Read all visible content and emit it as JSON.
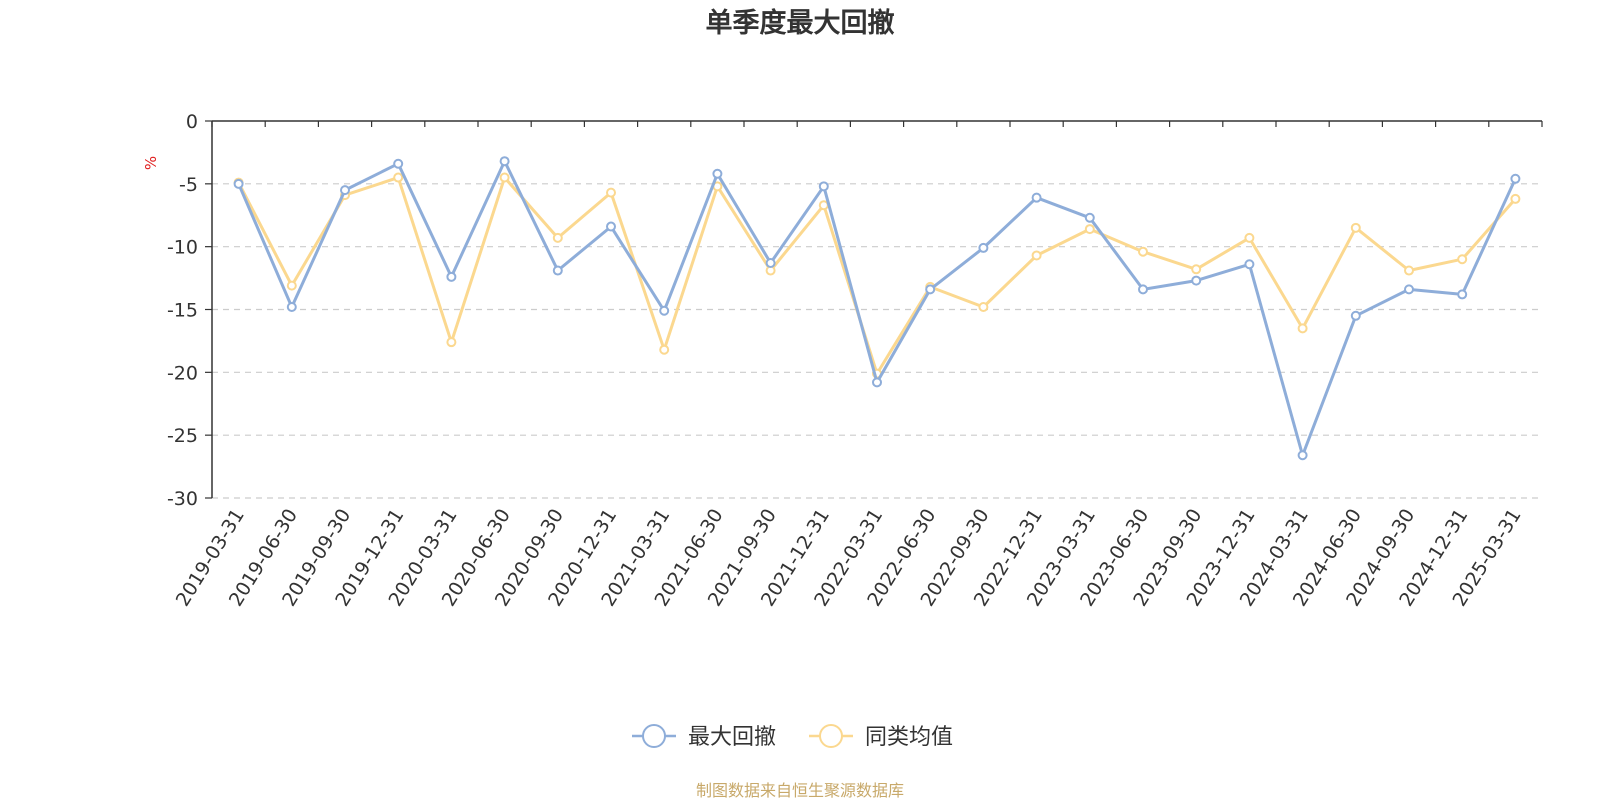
{
  "chart_data": {
    "type": "line",
    "title": "单季度最大回撤",
    "ylabel": "%",
    "ylim": [
      -30,
      0
    ],
    "yticks": [
      0,
      -5,
      -10,
      -15,
      -20,
      -25,
      -30
    ],
    "grid": true,
    "legend_position": "bottom-center",
    "categories": [
      "2019-03-31",
      "2019-06-30",
      "2019-09-30",
      "2019-12-31",
      "2020-03-31",
      "2020-06-30",
      "2020-09-30",
      "2020-12-31",
      "2021-03-31",
      "2021-06-30",
      "2021-09-30",
      "2021-12-31",
      "2022-03-31",
      "2022-06-30",
      "2022-09-30",
      "2022-12-31",
      "2023-03-31",
      "2023-06-30",
      "2023-09-30",
      "2023-12-31",
      "2024-03-31",
      "2024-06-30",
      "2024-09-30",
      "2024-12-31",
      "2025-03-31"
    ],
    "series": [
      {
        "name": "最大回撤",
        "color": "#8eadd9",
        "values": [
          -5.0,
          -14.8,
          -5.5,
          -3.4,
          -12.4,
          -3.2,
          -11.9,
          -8.4,
          -15.1,
          -4.2,
          -11.3,
          -5.2,
          -20.8,
          -13.4,
          -10.1,
          -6.1,
          -7.7,
          -13.4,
          -12.7,
          -11.4,
          -26.6,
          -15.5,
          -13.4,
          -13.8,
          -4.6
        ]
      },
      {
        "name": "同类均值",
        "color": "#fbd88f",
        "values": [
          -4.9,
          -13.1,
          -5.9,
          -4.5,
          -17.6,
          -4.5,
          -9.3,
          -5.7,
          -18.2,
          -5.2,
          -11.9,
          -6.7,
          -20.1,
          -13.2,
          -14.8,
          -10.7,
          -8.6,
          -10.4,
          -11.8,
          -9.3,
          -16.5,
          -8.5,
          -11.9,
          -11.0,
          -6.2
        ]
      }
    ]
  },
  "footer": {
    "source": "制图数据来自恒生聚源数据库",
    "source_color": "#c8a96a"
  },
  "colors": {
    "axis": "#333333",
    "grid": "#cccccc",
    "unit": "#e02020"
  }
}
